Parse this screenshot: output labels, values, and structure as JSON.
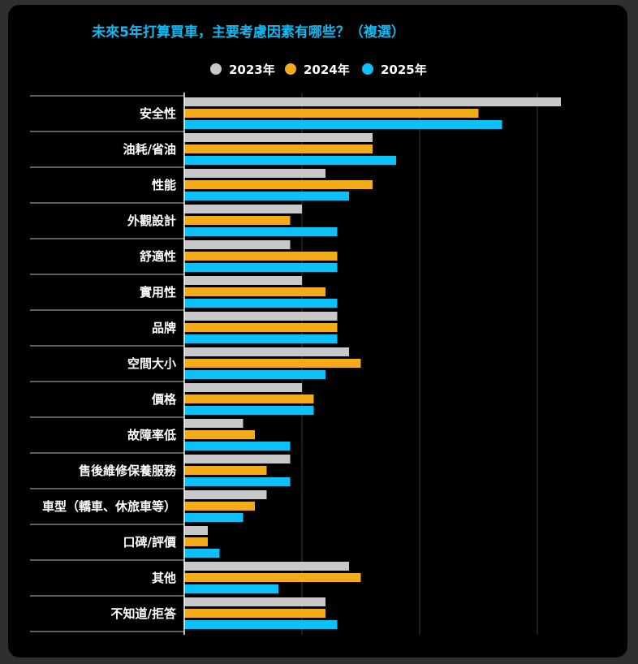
{
  "chart_data": {
    "type": "bar",
    "orientation": "horizontal",
    "title": "未來5年打算買車，主要考慮因素有哪些？（複選）",
    "xlabel": "",
    "ylabel": "",
    "xlim": [
      0,
      17
    ],
    "grid": true,
    "legend_position": "top",
    "categories": [
      "安全性",
      "油耗/省油",
      "性能",
      "外觀設計",
      "舒適性",
      "實用性",
      "品牌",
      "空間大小",
      "價格",
      "故障率低",
      "售後維修保養服務",
      "車型（轎車、休旅車等）",
      "口碑/評價",
      "其他",
      "不知道/拒答"
    ],
    "series": [
      {
        "name": "2023年",
        "color": "#c8c8c8",
        "values": [
          16.0,
          8.0,
          6.0,
          5.0,
          4.5,
          5.0,
          6.5,
          7.0,
          5.0,
          2.5,
          4.5,
          3.5,
          1.0,
          7.0,
          6.0
        ]
      },
      {
        "name": "2024年",
        "color": "#f2ac1a",
        "values": [
          12.5,
          8.0,
          8.0,
          4.5,
          6.5,
          6.0,
          6.5,
          7.5,
          5.5,
          3.0,
          3.5,
          3.0,
          1.0,
          7.5,
          6.0
        ]
      },
      {
        "name": "2025年",
        "color": "#0dc0f5",
        "values": [
          13.5,
          9.0,
          7.0,
          6.5,
          6.5,
          6.5,
          6.5,
          6.0,
          5.5,
          4.5,
          4.5,
          2.5,
          1.5,
          4.0,
          6.5
        ]
      }
    ]
  }
}
